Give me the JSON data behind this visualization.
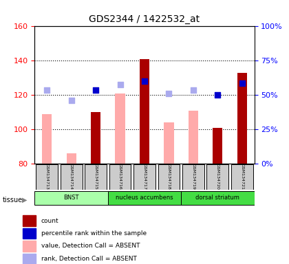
{
  "title": "GDS2344 / 1422532_at",
  "samples": [
    "GSM134713",
    "GSM134714",
    "GSM134715",
    "GSM134716",
    "GSM134717",
    "GSM134718",
    "GSM134719",
    "GSM134720",
    "GSM134721"
  ],
  "count_values": [
    null,
    null,
    110,
    null,
    141,
    null,
    null,
    101,
    133
  ],
  "absent_values": [
    109,
    86,
    null,
    121,
    null,
    104,
    111,
    null,
    null
  ],
  "rank_present": [
    null,
    null,
    123,
    null,
    128,
    null,
    null,
    120,
    127
  ],
  "rank_absent": [
    123,
    117,
    null,
    126,
    null,
    121,
    123,
    null,
    null
  ],
  "ylim_left": [
    80,
    160
  ],
  "ylim_right": [
    0,
    100
  ],
  "yticks_left": [
    80,
    100,
    120,
    140,
    160
  ],
  "yticks_right": [
    0,
    25,
    50,
    75,
    100
  ],
  "ytick_labels_right": [
    "0%",
    "25%",
    "50%",
    "75%",
    "100%"
  ],
  "tissues": [
    {
      "label": "BNST",
      "start": 0,
      "end": 3,
      "color": "#ccffcc"
    },
    {
      "label": "nucleus accumbens",
      "start": 3,
      "end": 6,
      "color": "#44ee44"
    },
    {
      "label": "dorsal striatum",
      "start": 6,
      "end": 9,
      "color": "#44ee44"
    }
  ],
  "tissue_light_color": "#ccffcc",
  "tissue_mid_color": "#55dd55",
  "tissue_dark_color": "#33cc33",
  "bar_color_count": "#aa0000",
  "bar_color_absent": "#ffaaaa",
  "dot_color_rank_present": "#0000cc",
  "dot_color_rank_absent": "#aaaaee",
  "grid_color": "#000000",
  "legend_items": [
    {
      "color": "#aa0000",
      "label": "count"
    },
    {
      "color": "#0000cc",
      "label": "percentile rank within the sample"
    },
    {
      "color": "#ffaaaa",
      "label": "value, Detection Call = ABSENT"
    },
    {
      "color": "#aaaaee",
      "label": "rank, Detection Call = ABSENT"
    }
  ]
}
